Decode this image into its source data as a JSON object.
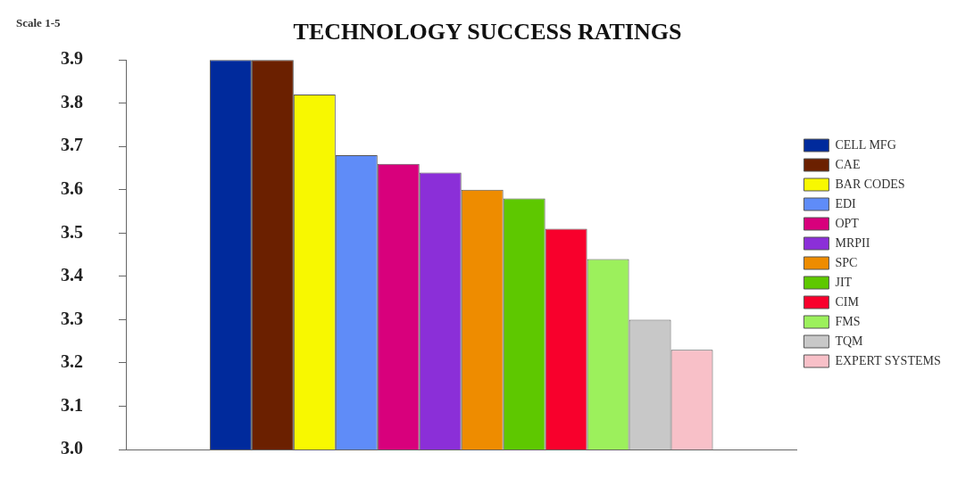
{
  "chart_data": {
    "type": "bar",
    "title": "TECHNOLOGY SUCCESS RATINGS",
    "ylabel": "Scale 1-5",
    "categories": [
      null
    ],
    "series": [
      {
        "name": "CELL MFG",
        "color": "#002a9c",
        "values": [
          3.9
        ]
      },
      {
        "name": "CAE",
        "color": "#6b2000",
        "values": [
          3.9
        ]
      },
      {
        "name": "BAR CODES",
        "color": "#f8f800",
        "values": [
          3.82
        ]
      },
      {
        "name": "EDI",
        "color": "#5f8cf8",
        "values": [
          3.68
        ]
      },
      {
        "name": "OPT",
        "color": "#d8007c",
        "values": [
          3.66
        ]
      },
      {
        "name": "MRPII",
        "color": "#8b2fd8",
        "values": [
          3.64
        ]
      },
      {
        "name": "SPC",
        "color": "#ee8c00",
        "values": [
          3.6
        ]
      },
      {
        "name": "JIT",
        "color": "#5ec800",
        "values": [
          3.58
        ]
      },
      {
        "name": "CIM",
        "color": "#f8002c",
        "values": [
          3.51
        ]
      },
      {
        "name": "FMS",
        "color": "#9cf05c",
        "values": [
          3.44
        ]
      },
      {
        "name": "TQM",
        "color": "#c8c8c8",
        "values": [
          3.3
        ]
      },
      {
        "name": "EXPERT SYSTEMS",
        "color": "#f8c0c8",
        "values": [
          3.23
        ]
      }
    ],
    "ylim": [
      3.0,
      3.9
    ],
    "yticks": [
      {
        "value": 3.0,
        "label": "3.0"
      },
      3.1,
      3.2,
      3.3,
      3.4,
      3.5,
      3.6,
      3.7,
      3.8,
      3.9
    ],
    "grid": false,
    "legend": "right"
  }
}
